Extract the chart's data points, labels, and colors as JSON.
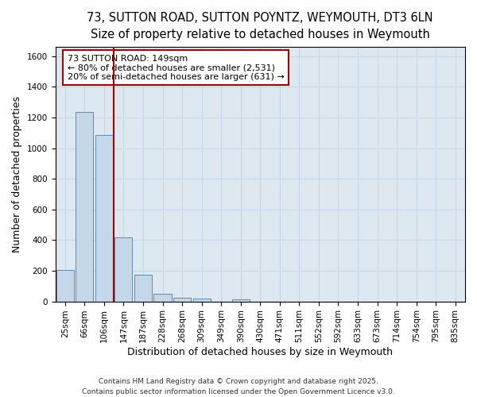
{
  "title_line1": "73, SUTTON ROAD, SUTTON POYNTZ, WEYMOUTH, DT3 6LN",
  "title_line2": "Size of property relative to detached houses in Weymouth",
  "xlabel": "Distribution of detached houses by size in Weymouth",
  "ylabel": "Number of detached properties",
  "categories": [
    "25sqm",
    "66sqm",
    "106sqm",
    "147sqm",
    "187sqm",
    "228sqm",
    "268sqm",
    "309sqm",
    "349sqm",
    "390sqm",
    "430sqm",
    "471sqm",
    "511sqm",
    "552sqm",
    "592sqm",
    "633sqm",
    "673sqm",
    "714sqm",
    "754sqm",
    "795sqm",
    "835sqm"
  ],
  "values": [
    205,
    1235,
    1085,
    415,
    175,
    50,
    25,
    20,
    0,
    15,
    0,
    0,
    0,
    0,
    0,
    0,
    0,
    0,
    0,
    0,
    0
  ],
  "bar_color": "#c5d8ea",
  "bar_edge_color": "#5b8db8",
  "vline_color": "#aa0000",
  "vline_x": 2.5,
  "annotation_text": "73 SUTTON ROAD: 149sqm\n← 80% of detached houses are smaller (2,531)\n20% of semi-detached houses are larger (631) →",
  "annotation_box_facecolor": "#ffffff",
  "annotation_box_edgecolor": "#aa0000",
  "ylim": [
    0,
    1660
  ],
  "yticks": [
    0,
    200,
    400,
    600,
    800,
    1000,
    1200,
    1400,
    1600
  ],
  "grid_color": "#c8d8e8",
  "background_color": "#dde8f0",
  "title_fontsize": 10.5,
  "subtitle_fontsize": 9.5,
  "axis_label_fontsize": 9,
  "tick_fontsize": 7.5,
  "annotation_fontsize": 8,
  "footer_text": "Contains HM Land Registry data © Crown copyright and database right 2025.\nContains public sector information licensed under the Open Government Licence v3.0.",
  "footer_fontsize": 6.5
}
